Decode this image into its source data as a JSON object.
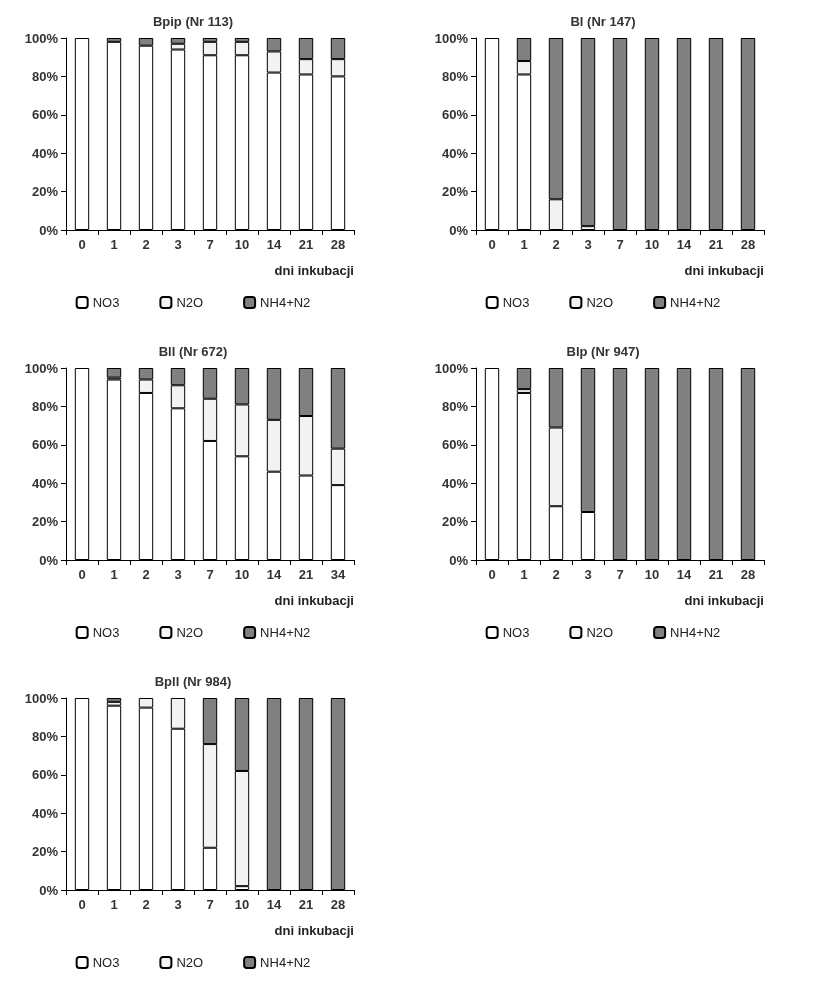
{
  "chart_data": [
    {
      "type": "bar",
      "stacked": true,
      "title": "Bpip (Nr 113)",
      "xlabel": "dni inkubacji",
      "categories": [
        "0",
        "1",
        "2",
        "3",
        "7",
        "10",
        "14",
        "21",
        "28"
      ],
      "ylim": [
        0,
        100
      ],
      "yticks": [
        {
          "value": 0,
          "label": "0%"
        },
        {
          "value": 20,
          "label": "20%"
        },
        {
          "value": 40,
          "label": "40%"
        },
        {
          "value": 60,
          "label": "60%"
        },
        {
          "value": 80,
          "label": "80%"
        },
        {
          "value": 100,
          "label": "100%"
        }
      ],
      "grid": false,
      "legend": "bottom",
      "series": [
        {
          "name": "NO3",
          "color": "#ffffff",
          "values": [
            100,
            98,
            96,
            94,
            91,
            91,
            82,
            81,
            80
          ]
        },
        {
          "name": "N2O",
          "color": "#f2f2f2",
          "values": [
            0,
            0,
            0,
            3,
            7,
            7,
            11,
            8,
            9
          ]
        },
        {
          "name": "NH4+N2",
          "color": "#808080",
          "values": [
            0,
            2,
            4,
            3,
            2,
            2,
            7,
            11,
            11
          ]
        }
      ]
    },
    {
      "type": "bar",
      "stacked": true,
      "title": "Bl (Nr 147)",
      "xlabel": "dni inkubacji",
      "categories": [
        "0",
        "1",
        "2",
        "3",
        "7",
        "10",
        "14",
        "21",
        "28"
      ],
      "ylim": [
        0,
        100
      ],
      "yticks": [
        {
          "value": 0,
          "label": "0%"
        },
        {
          "value": 20,
          "label": "20%"
        },
        {
          "value": 40,
          "label": "40%"
        },
        {
          "value": 60,
          "label": "60%"
        },
        {
          "value": 80,
          "label": "80%"
        },
        {
          "value": 100,
          "label": "100%"
        }
      ],
      "grid": false,
      "legend": "bottom",
      "series": [
        {
          "name": "NO3",
          "color": "#ffffff",
          "values": [
            100,
            81,
            0,
            0,
            0,
            0,
            0,
            0,
            0
          ]
        },
        {
          "name": "N2O",
          "color": "#f2f2f2",
          "values": [
            0,
            7,
            16,
            2,
            0,
            0,
            0,
            0,
            0
          ]
        },
        {
          "name": "NH4+N2",
          "color": "#808080",
          "values": [
            0,
            12,
            84,
            98,
            100,
            100,
            100,
            100,
            100
          ]
        }
      ]
    },
    {
      "type": "bar",
      "stacked": true,
      "title": "Bll (Nr 672)",
      "xlabel": "dni inkubacji",
      "categories": [
        "0",
        "1",
        "2",
        "3",
        "7",
        "10",
        "14",
        "21",
        "34"
      ],
      "ylim": [
        0,
        100
      ],
      "yticks": [
        {
          "value": 0,
          "label": "0%"
        },
        {
          "value": 20,
          "label": "20%"
        },
        {
          "value": 40,
          "label": "40%"
        },
        {
          "value": 60,
          "label": "60%"
        },
        {
          "value": 80,
          "label": "80%"
        },
        {
          "value": 100,
          "label": "100%"
        }
      ],
      "grid": false,
      "legend": "bottom",
      "series": [
        {
          "name": "NO3",
          "color": "#ffffff",
          "values": [
            100,
            94,
            87,
            79,
            62,
            54,
            46,
            44,
            39
          ]
        },
        {
          "name": "N2O",
          "color": "#f2f2f2",
          "values": [
            0,
            1,
            7,
            12,
            22,
            27,
            27,
            31,
            19
          ]
        },
        {
          "name": "NH4+N2",
          "color": "#808080",
          "values": [
            0,
            5,
            6,
            9,
            16,
            19,
            27,
            25,
            42
          ]
        }
      ]
    },
    {
      "type": "bar",
      "stacked": true,
      "title": "Blp (Nr 947)",
      "xlabel": "dni inkubacji",
      "categories": [
        "0",
        "1",
        "2",
        "3",
        "7",
        "10",
        "14",
        "21",
        "28"
      ],
      "ylim": [
        0,
        100
      ],
      "yticks": [
        {
          "value": 0,
          "label": "0%"
        },
        {
          "value": 20,
          "label": "20%"
        },
        {
          "value": 40,
          "label": "40%"
        },
        {
          "value": 60,
          "label": "60%"
        },
        {
          "value": 80,
          "label": "80%"
        },
        {
          "value": 100,
          "label": "100%"
        }
      ],
      "grid": false,
      "legend": "bottom",
      "series": [
        {
          "name": "NO3",
          "color": "#ffffff",
          "values": [
            100,
            87,
            28,
            25,
            0,
            0,
            0,
            0,
            0
          ]
        },
        {
          "name": "N2O",
          "color": "#f2f2f2",
          "values": [
            0,
            2,
            41,
            0,
            0,
            0,
            0,
            0,
            0
          ]
        },
        {
          "name": "NH4+N2",
          "color": "#808080",
          "values": [
            0,
            11,
            31,
            75,
            100,
            100,
            100,
            100,
            100
          ]
        }
      ]
    },
    {
      "type": "bar",
      "stacked": true,
      "title": "Bpll (Nr 984)",
      "xlabel": "dni inkubacji",
      "categories": [
        "0",
        "1",
        "2",
        "3",
        "7",
        "10",
        "14",
        "21",
        "28"
      ],
      "ylim": [
        0,
        100
      ],
      "yticks": [
        {
          "value": 0,
          "label": "0%"
        },
        {
          "value": 20,
          "label": "20%"
        },
        {
          "value": 40,
          "label": "40%"
        },
        {
          "value": 60,
          "label": "60%"
        },
        {
          "value": 80,
          "label": "80%"
        },
        {
          "value": 100,
          "label": "100%"
        }
      ],
      "grid": false,
      "legend": "bottom",
      "series": [
        {
          "name": "NO3",
          "color": "#ffffff",
          "values": [
            100,
            96,
            95,
            84,
            22,
            2,
            0,
            0,
            0
          ]
        },
        {
          "name": "N2O",
          "color": "#f2f2f2",
          "values": [
            0,
            2,
            5,
            16,
            54,
            60,
            0,
            0,
            0
          ]
        },
        {
          "name": "NH4+N2",
          "color": "#808080",
          "values": [
            0,
            2,
            0,
            0,
            24,
            38,
            100,
            100,
            100
          ]
        }
      ]
    }
  ]
}
